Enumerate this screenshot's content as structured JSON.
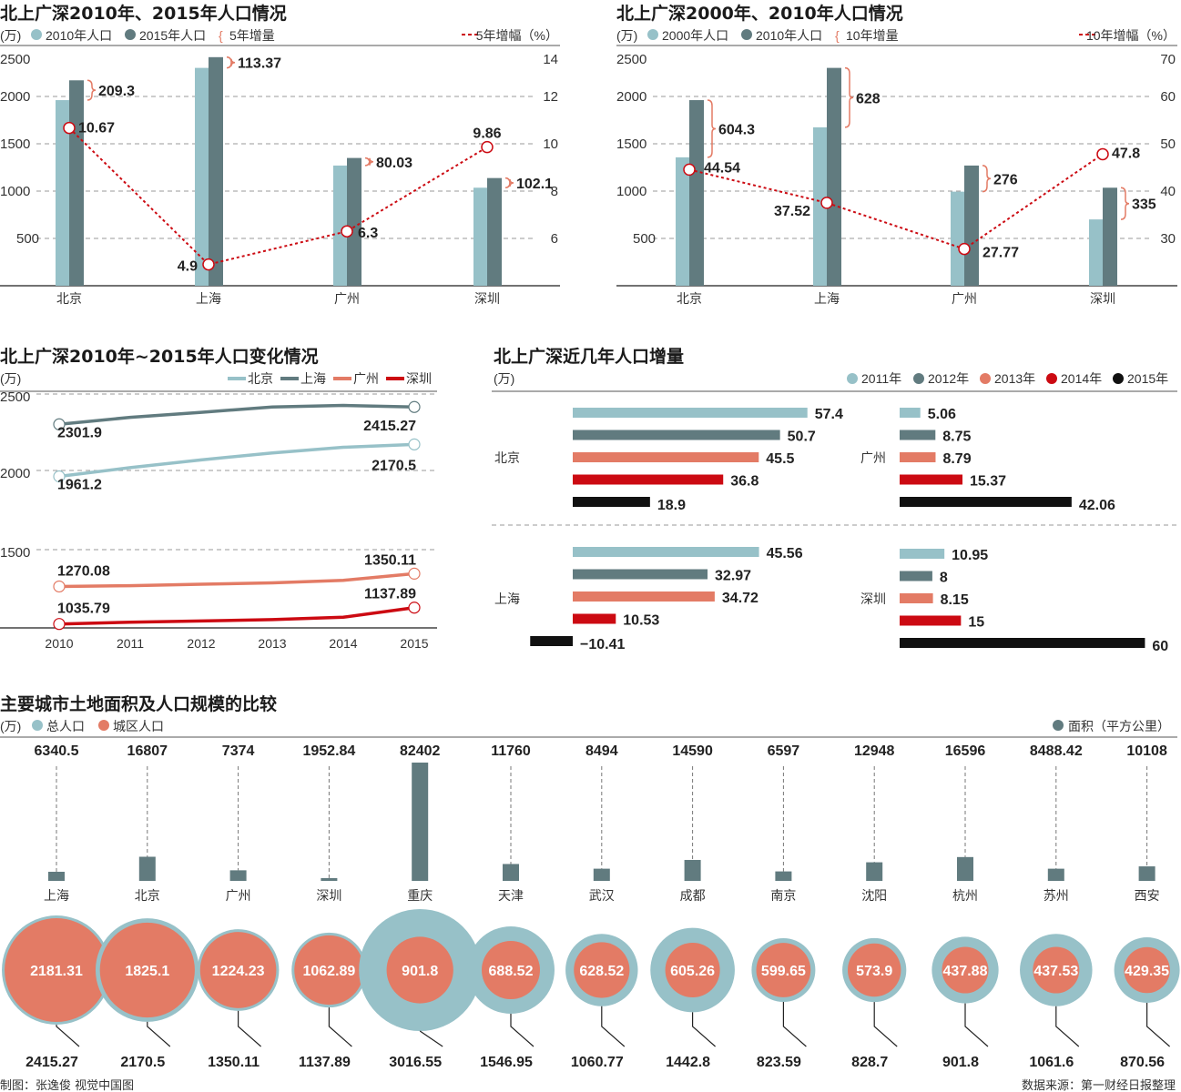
{
  "colors": {
    "light": "#97c1c8",
    "dark": "#617b7f",
    "orange": "#e37b65",
    "red": "#cc0a12",
    "black": "#111111",
    "grid": "#999999"
  },
  "footer": {
    "credit": "制图：张逸俊  视觉中国图",
    "source": "数据来源：第一财经日报整理"
  },
  "chart_data": [
    {
      "type": "bar+line",
      "title": "北上广深2010年、2015年人口情况",
      "unit": "(万)",
      "legend": {
        "a": "2010年人口",
        "b": "2015年人口",
        "inc": "5年增量",
        "rate": "5年增幅（%）"
      },
      "categories": [
        "北京",
        "上海",
        "广州",
        "深圳"
      ],
      "series": [
        {
          "name": "2010年人口",
          "values": [
            1961.2,
            2301.9,
            1270.08,
            1035.79
          ]
        },
        {
          "name": "2015年人口",
          "values": [
            2170.5,
            2415.27,
            1350.11,
            1137.89
          ]
        }
      ],
      "increase": [
        "209.3",
        "113.37",
        "80.03",
        "102.1"
      ],
      "rate": {
        "name": "5年增幅（%）",
        "values": [
          10.67,
          4.9,
          6.3,
          9.86
        ]
      },
      "yleft": {
        "ticks": [
          500,
          1000,
          1500,
          2000,
          2500
        ],
        "range": [
          0,
          2500
        ]
      },
      "yright": {
        "ticks": [
          6,
          8,
          10,
          12,
          14
        ],
        "range": [
          4,
          14
        ]
      },
      "grid": true
    },
    {
      "type": "bar+line",
      "title": "北上广深2000年、2010年人口情况",
      "unit": "(万)",
      "legend": {
        "a": "2000年人口",
        "b": "2010年人口",
        "inc": "10年增量",
        "rate": "10年增幅（%）"
      },
      "categories": [
        "北京",
        "上海",
        "广州",
        "深圳"
      ],
      "series": [
        {
          "name": "2000年人口",
          "values": [
            1356.9,
            1673.9,
            994.1,
            700.8
          ]
        },
        {
          "name": "2010年人口",
          "values": [
            1961.2,
            2301.9,
            1270.08,
            1035.79
          ]
        }
      ],
      "increase": [
        "604.3",
        "628",
        "276",
        "335"
      ],
      "rate": {
        "name": "10年增幅（%）",
        "values": [
          44.54,
          37.52,
          27.77,
          47.8
        ]
      },
      "yleft": {
        "ticks": [
          500,
          1000,
          1500,
          2000,
          2500
        ],
        "range": [
          0,
          2500
        ]
      },
      "yright": {
        "ticks": [
          30,
          40,
          50,
          60,
          70
        ],
        "range": [
          20,
          70
        ]
      },
      "grid": true
    },
    {
      "type": "line",
      "title": "北上广深2010年~2015年人口变化情况",
      "unit": "(万)",
      "x": [
        "2010",
        "2011",
        "2012",
        "2013",
        "2014",
        "2015"
      ],
      "yticks": [
        "2500",
        "2000",
        "1500"
      ],
      "series": [
        {
          "name": "北京",
          "color": "#97c1c8",
          "values": [
            1961.2,
            2018.6,
            2069.3,
            2114.8,
            2151.6,
            2170.5
          ],
          "labels": [
            "1961.2",
            "2170.5"
          ]
        },
        {
          "name": "上海",
          "color": "#617b7f",
          "values": [
            2301.9,
            2347.5,
            2380.4,
            2415.2,
            2425.7,
            2415.27
          ],
          "labels": [
            "2301.9",
            "2415.27"
          ]
        },
        {
          "name": "广州",
          "color": "#e37b65",
          "values": [
            1270.08,
            1275.1,
            1283.9,
            1292.7,
            1308.1,
            1350.11
          ],
          "labels": [
            "1270.08",
            "1350.11"
          ]
        },
        {
          "name": "深圳",
          "color": "#cc0a12",
          "values": [
            1035.79,
            1046.7,
            1054.7,
            1062.9,
            1077.9,
            1137.89
          ],
          "labels": [
            "1035.79",
            "1137.89"
          ]
        }
      ],
      "grid": true,
      "legend": "top-right"
    },
    {
      "type": "bar",
      "orientation": "horizontal",
      "title": "北上广深近几年人口增量",
      "unit": "(万)",
      "legend": [
        "2011年",
        "2012年",
        "2013年",
        "2014年",
        "2015年"
      ],
      "groups": [
        {
          "city": "北京",
          "values": [
            57.4,
            50.7,
            45.5,
            36.8,
            18.9
          ],
          "labels": [
            "57.4",
            "50.7",
            "45.5",
            "36.8",
            "18.9"
          ]
        },
        {
          "city": "广州",
          "values": [
            5.06,
            8.75,
            8.79,
            15.37,
            42.06
          ],
          "labels": [
            "5.06",
            "8.75",
            "8.79",
            "15.37",
            "42.06"
          ]
        },
        {
          "city": "上海",
          "values": [
            45.56,
            32.97,
            34.72,
            10.53,
            -10.41
          ],
          "labels": [
            "45.56",
            "32.97",
            "34.72",
            "10.53",
            "−10.41"
          ]
        },
        {
          "city": "深圳",
          "values": [
            10.95,
            8,
            8.15,
            15,
            60
          ],
          "labels": [
            "10.95",
            "8",
            "8.15",
            "15",
            "60"
          ]
        }
      ]
    },
    {
      "type": "bubble+bar",
      "title": "主要城市土地面积及人口规模的比较",
      "unit": "(万)",
      "legend": {
        "total": "总人口",
        "urban": "城区人口",
        "area": "面积（平方公里）"
      },
      "categories": [
        "上海",
        "北京",
        "广州",
        "深圳",
        "重庆",
        "天津",
        "武汉",
        "成都",
        "南京",
        "沈阳",
        "杭州",
        "苏州",
        "西安"
      ],
      "area": [
        "6340.5",
        "16807",
        "7374",
        "1952.84",
        "82402",
        "11760",
        "8494",
        "14590",
        "6597",
        "12948",
        "16596",
        "8488.42",
        "10108"
      ],
      "total": [
        "2415.27",
        "2170.5",
        "1350.11",
        "1137.89",
        "3016.55",
        "1546.95",
        "1060.77",
        "1442.8",
        "823.59",
        "828.7",
        "901.8",
        "1061.6",
        "870.56"
      ],
      "urban": [
        "2181.31",
        "1825.1",
        "1224.23",
        "1062.89",
        "901.8",
        "688.52",
        "628.52",
        "605.26",
        "599.65",
        "573.9",
        "437.88",
        "437.53",
        "429.35"
      ]
    }
  ]
}
